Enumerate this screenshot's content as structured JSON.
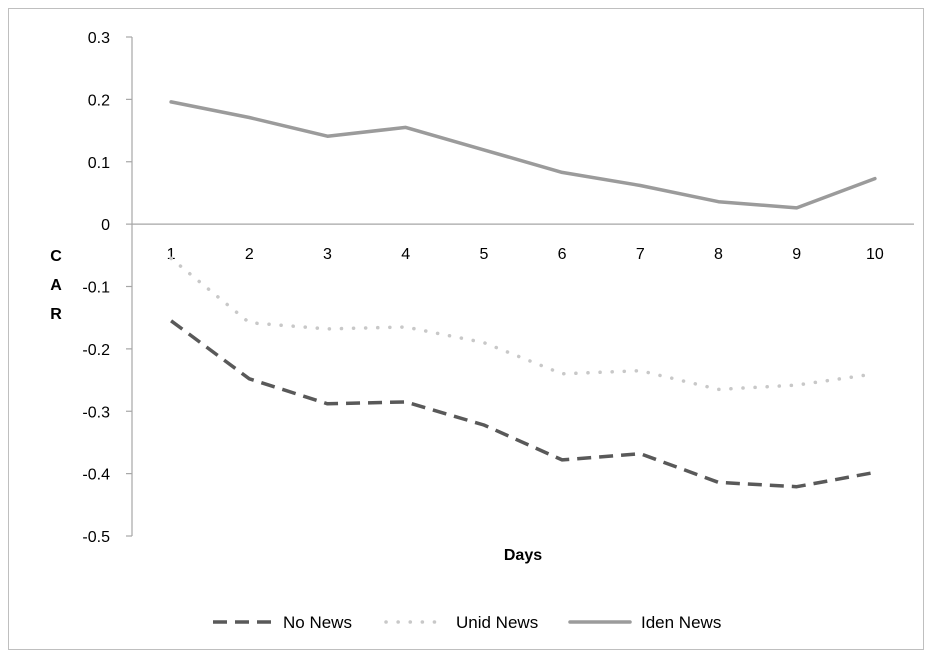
{
  "chart_data": {
    "type": "line",
    "title": "",
    "xlabel": "Days",
    "ylabel": "CAR",
    "categories": [
      "1",
      "2",
      "3",
      "4",
      "5",
      "6",
      "7",
      "8",
      "9",
      "10"
    ],
    "ylim": [
      -0.5,
      0.3
    ],
    "yticks": [
      "0.3",
      "0.2",
      "0.1",
      "0",
      "-0.1",
      "-0.2",
      "-0.3",
      "-0.4",
      "-0.5"
    ],
    "ytick_values": [
      0.3,
      0.2,
      0.1,
      0,
      -0.1,
      -0.2,
      -0.3,
      -0.4,
      -0.5
    ],
    "grid": false,
    "legend": "bottom",
    "series": [
      {
        "name": "No News",
        "style": "dashed",
        "color": "#595959",
        "values": [
          -0.155,
          -0.248,
          -0.288,
          -0.285,
          -0.322,
          -0.378,
          -0.368,
          -0.414,
          -0.421,
          -0.398
        ]
      },
      {
        "name": "Unid News",
        "style": "dotted",
        "color": "#c8c8c8",
        "values": [
          -0.055,
          -0.158,
          -0.168,
          -0.165,
          -0.19,
          -0.24,
          -0.235,
          -0.265,
          -0.258,
          -0.24
        ]
      },
      {
        "name": "Iden News",
        "style": "solid",
        "color": "#9b9b9b",
        "values": [
          0.196,
          0.171,
          0.141,
          0.155,
          0.119,
          0.083,
          0.062,
          0.036,
          0.026,
          0.073
        ]
      }
    ]
  }
}
